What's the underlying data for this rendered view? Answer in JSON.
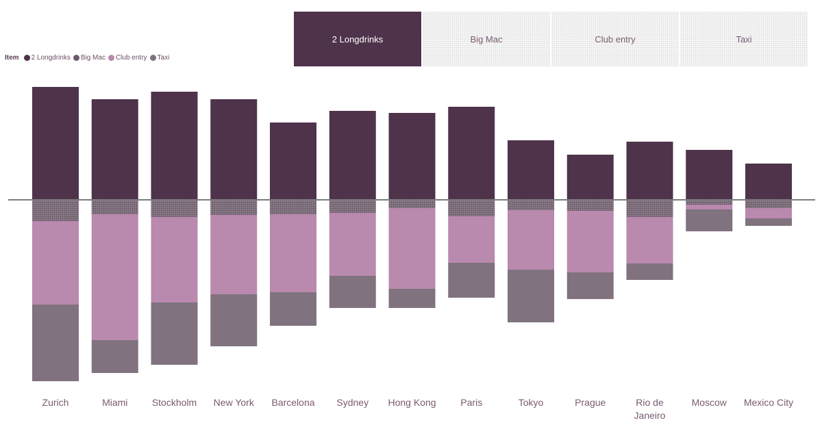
{
  "slicer": {
    "buttons": [
      "2 Longdrinks",
      "Big Mac",
      "Club entry",
      "Taxi"
    ],
    "selected": "2 Longdrinks"
  },
  "legend": {
    "title": "Item",
    "items": [
      {
        "label": "2 Longdrinks",
        "color": "#4e334b"
      },
      {
        "label": "Big Mac",
        "color": "#6e5a6c"
      },
      {
        "label": "Club entry",
        "color": "#b989ae"
      },
      {
        "label": "Taxi",
        "color": "#80727f"
      }
    ]
  },
  "chart_data": {
    "type": "bar",
    "stacking": "diverging",
    "baseline_series": "2 Longdrinks",
    "categories": [
      "Zurich",
      "Miami",
      "Stockholm",
      "New York",
      "Barcelona",
      "Sydney",
      "Hong Kong",
      "Paris",
      "Tokyo",
      "Prague",
      "Rio de Janeiro",
      "Moscow",
      "Mexico City"
    ],
    "series": [
      {
        "name": "2 Longdrinks",
        "color": "#4e334b",
        "values": [
          165,
          147,
          158,
          147,
          113,
          130,
          127,
          136,
          87,
          66,
          85,
          73,
          53
        ]
      },
      {
        "name": "Big Mac",
        "color": "#6e5a6c",
        "values": [
          31,
          21,
          25,
          22,
          21,
          19,
          12,
          24,
          15,
          16,
          25,
          7,
          12
        ]
      },
      {
        "name": "Club entry",
        "color": "#b989ae",
        "values": [
          122,
          184,
          125,
          116,
          114,
          92,
          118,
          68,
          87,
          90,
          68,
          7,
          15
        ]
      },
      {
        "name": "Taxi",
        "color": "#80727f",
        "values": [
          112,
          48,
          91,
          76,
          49,
          47,
          28,
          51,
          77,
          39,
          24,
          32,
          11
        ]
      }
    ],
    "legend_position": "top-left",
    "grid": false,
    "xlabel": "",
    "ylabel": ""
  }
}
